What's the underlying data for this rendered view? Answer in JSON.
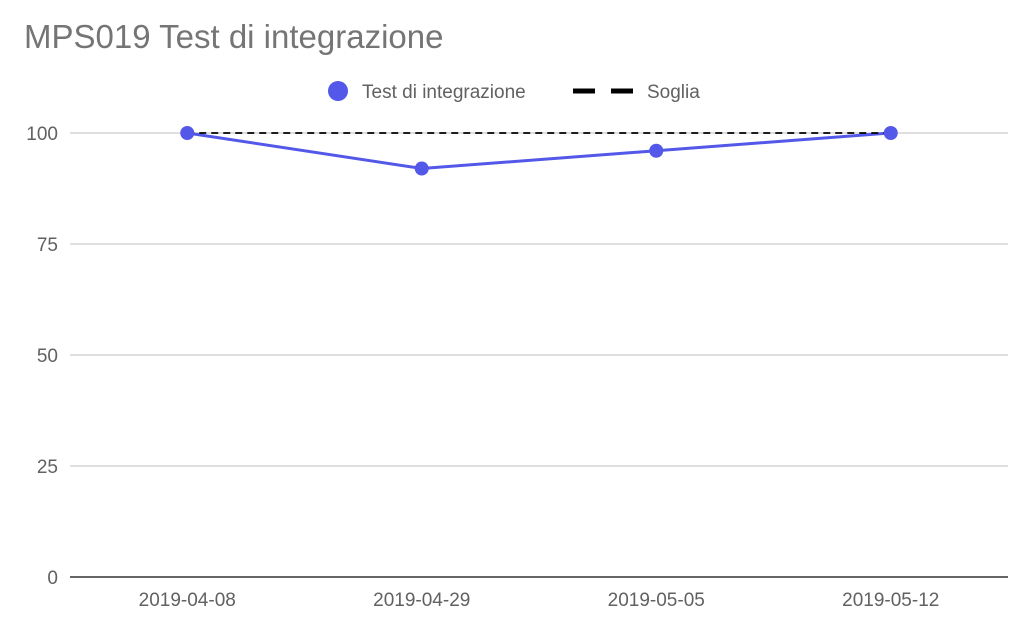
{
  "chart_data": {
    "type": "line",
    "title": "MPS019 Test di integrazione",
    "categories": [
      "2019-04-08",
      "2019-04-29",
      "2019-05-05",
      "2019-05-12"
    ],
    "series": [
      {
        "name": "Test di integrazione",
        "values": [
          100,
          92,
          96,
          100
        ],
        "color": "#5458e8",
        "style": "line-with-markers"
      },
      {
        "name": "Soglia",
        "values": [
          100,
          100,
          100,
          100
        ],
        "color": "#000000",
        "style": "dashed"
      }
    ],
    "ylim": [
      0,
      100
    ],
    "yticks": [
      0,
      25,
      50,
      75,
      100
    ],
    "grid": true,
    "legend": "top-center",
    "xlabel": "",
    "ylabel": ""
  }
}
